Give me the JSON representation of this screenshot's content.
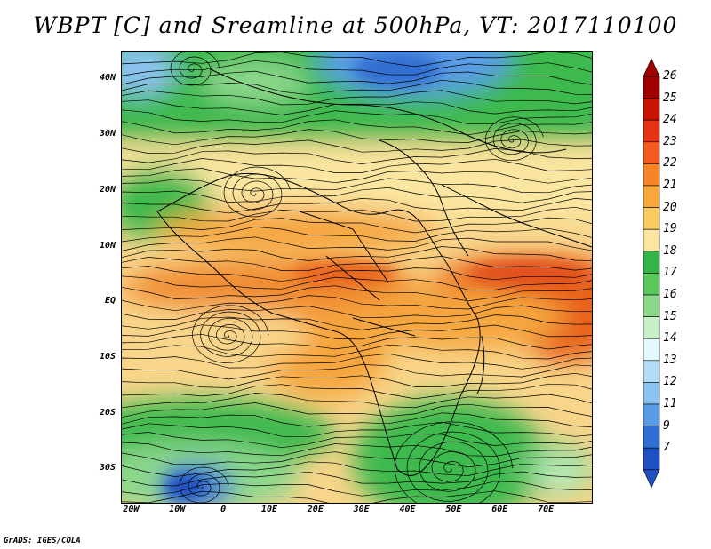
{
  "title": "WBPT [C] and Sreamline at 500hPa, VT: 2017110100",
  "credit": "GrADS: IGES/COLA",
  "lat_labels": [
    {
      "text": "40N",
      "lat": 40
    },
    {
      "text": "30N",
      "lat": 30
    },
    {
      "text": "20N",
      "lat": 20
    },
    {
      "text": "10N",
      "lat": 10
    },
    {
      "text": "EQ",
      "lat": 0
    },
    {
      "text": "10S",
      "lat": -10
    },
    {
      "text": "20S",
      "lat": -20
    },
    {
      "text": "30S",
      "lat": -30
    }
  ],
  "lon_labels": [
    {
      "text": "20W",
      "lon": -20
    },
    {
      "text": "10W",
      "lon": -10
    },
    {
      "text": "0",
      "lon": 0
    },
    {
      "text": "10E",
      "lon": 10
    },
    {
      "text": "20E",
      "lon": 20
    },
    {
      "text": "30E",
      "lon": 30
    },
    {
      "text": "40E",
      "lon": 40
    },
    {
      "text": "50E",
      "lon": 50
    },
    {
      "text": "60E",
      "lon": 60
    },
    {
      "text": "70E",
      "lon": 70
    }
  ],
  "extent": {
    "lon_min": -22,
    "lon_max": 80,
    "lat_min": -36,
    "lat_max": 45
  },
  "colorbar": {
    "labels": [
      "26",
      "25",
      "24",
      "23",
      "22",
      "21",
      "20",
      "19",
      "18",
      "17",
      "16",
      "15",
      "14",
      "13",
      "12",
      "11",
      "9",
      "7"
    ],
    "colors": [
      "#a00000",
      "#c81400",
      "#e63214",
      "#f55a1e",
      "#f78528",
      "#f8a838",
      "#f8cc60",
      "#fae6a0",
      "#36b44a",
      "#5cc55c",
      "#8cd78c",
      "#c8f0c8",
      "#e6f8ff",
      "#b4dcf5",
      "#8cc3f0",
      "#5a9be6",
      "#326ed2",
      "#1e50c3"
    ]
  },
  "legend_colors": {
    "hot": "#e8641e",
    "warm": "#f5a53c",
    "mild": "#f8d58a",
    "cool_green": "#3cb94e",
    "light_green": "#a8e0a0",
    "cold": "#3c78d8"
  }
}
